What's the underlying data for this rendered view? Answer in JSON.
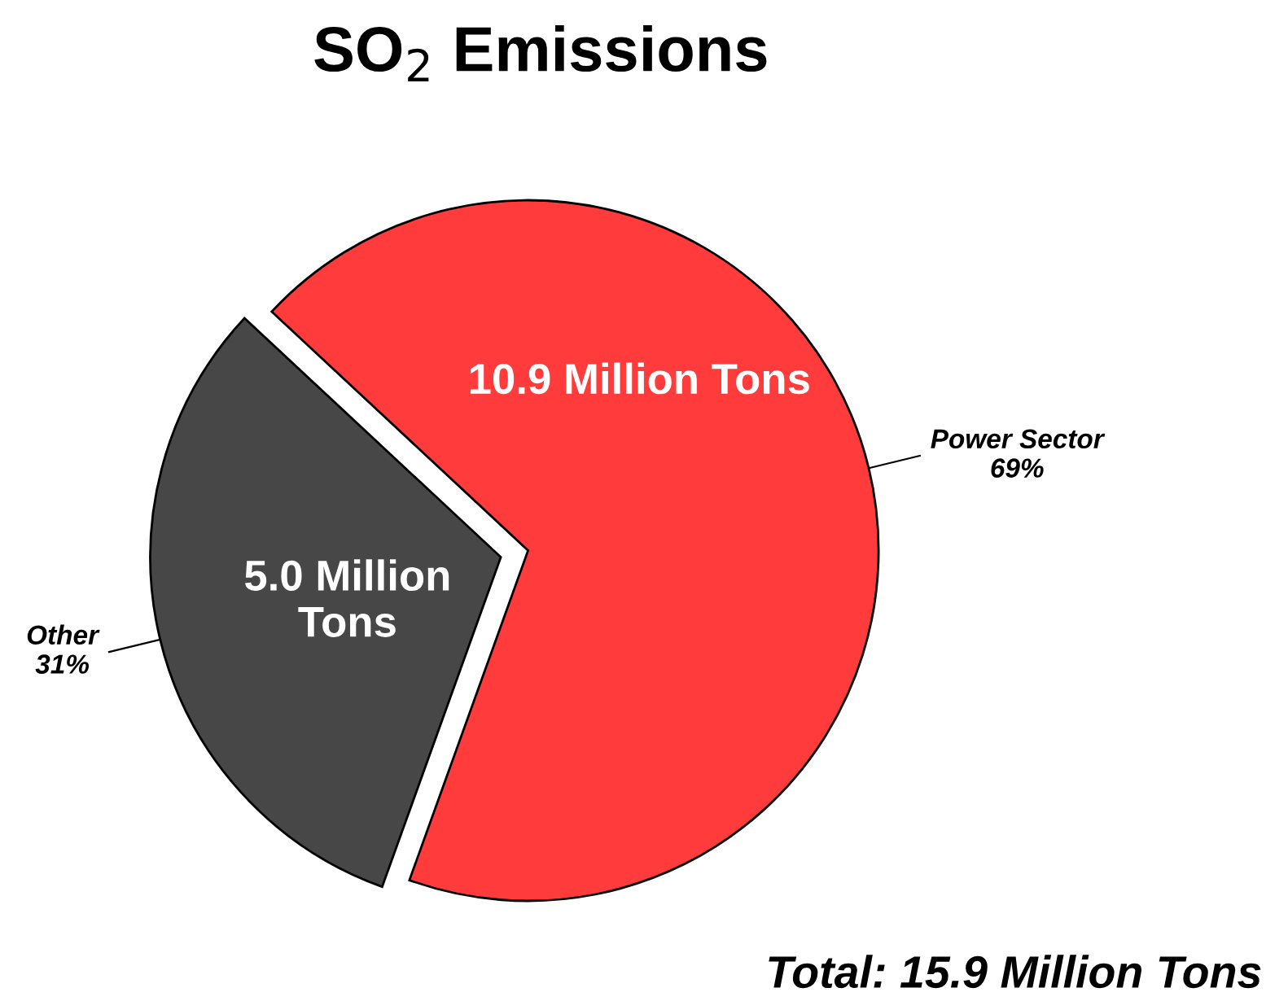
{
  "chart_data": {
    "type": "pie",
    "title": "SO$_{2}$ Emissions",
    "categories": [
      "Power Sector",
      "Other"
    ],
    "values": [
      10.9,
      5.0
    ],
    "colors": [
      "#ff3b3b",
      "#474747"
    ],
    "value_labels": [
      "10.9 Million Tons",
      "5.0 Million\nTons"
    ],
    "annotations": [
      "69%",
      "31%",
      "Total: 15.9 Million Tons"
    ],
    "legend": false
  }
}
